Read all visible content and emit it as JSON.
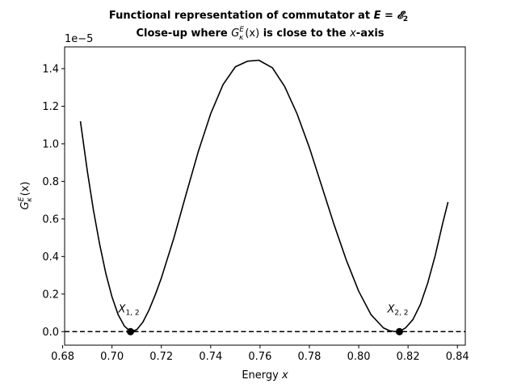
{
  "chart_data": {
    "type": "line",
    "title_line1_prefix": "Functional representation of commutator at ",
    "title_line1_math": "E = 𝓔",
    "title_line1_sub": "2",
    "title_line2_prefix": "Close-up where ",
    "title_line2_func": "G",
    "title_line2_sup": "E",
    "title_line2_subk": "κ",
    "title_line2_arg": "(x)",
    "title_line2_mid": " is close to the ",
    "title_line2_var": "x",
    "title_line2_suffix": "-axis",
    "xlabel_text": "Energy ",
    "xlabel_var": "x",
    "ylabel_func": "G",
    "ylabel_sup": "E",
    "ylabel_subk": "κ",
    "ylabel_arg": "(x)",
    "offset_text": "1e−5",
    "xlim": [
      0.6808,
      0.8432
    ],
    "ylim": [
      -0.072,
      1.516
    ],
    "xticks": [
      0.68,
      0.7,
      0.72,
      0.74,
      0.76,
      0.78,
      0.8,
      0.82,
      0.84
    ],
    "xtick_labels": [
      "0.68",
      "0.70",
      "0.72",
      "0.74",
      "0.76",
      "0.78",
      "0.80",
      "0.82",
      "0.84"
    ],
    "yticks": [
      0.0,
      0.2,
      0.4,
      0.6,
      0.8,
      1.0,
      1.2,
      1.4
    ],
    "ytick_labels": [
      "0.0",
      "0.2",
      "0.4",
      "0.6",
      "0.8",
      "1.0",
      "1.2",
      "1.4"
    ],
    "grid": false,
    "series": [
      {
        "style": "solid",
        "color": "#000000",
        "x": [
          0.6872,
          0.69,
          0.6925,
          0.695,
          0.6975,
          0.7,
          0.7025,
          0.705,
          0.7075,
          0.71,
          0.7125,
          0.715,
          0.7175,
          0.72,
          0.725,
          0.73,
          0.735,
          0.74,
          0.745,
          0.75,
          0.755,
          0.7595,
          0.765,
          0.77,
          0.775,
          0.78,
          0.785,
          0.79,
          0.795,
          0.8,
          0.805,
          0.81,
          0.8125,
          0.815,
          0.8165,
          0.819,
          0.822,
          0.825,
          0.828,
          0.831,
          0.834,
          0.8362
        ],
        "y": [
          1.12,
          0.855,
          0.645,
          0.465,
          0.31,
          0.185,
          0.09,
          0.03,
          0.0,
          0.01,
          0.05,
          0.115,
          0.195,
          0.285,
          0.495,
          0.73,
          0.96,
          1.16,
          1.315,
          1.41,
          1.44,
          1.445,
          1.405,
          1.305,
          1.16,
          0.98,
          0.775,
          0.57,
          0.38,
          0.215,
          0.09,
          0.02,
          0.005,
          0.0,
          0.0,
          0.02,
          0.065,
          0.145,
          0.26,
          0.405,
          0.575,
          0.69
        ]
      },
      {
        "style": "dashed",
        "color": "#000000",
        "x": [
          0.6808,
          0.8432
        ],
        "y": [
          0.0,
          0.0
        ]
      }
    ],
    "points": [
      {
        "x": 0.7075,
        "y": 0.0,
        "label_main": "X",
        "label_sub": "1, 2"
      },
      {
        "x": 0.8165,
        "y": 0.0,
        "label_main": "X",
        "label_sub": "2, 2"
      }
    ]
  }
}
